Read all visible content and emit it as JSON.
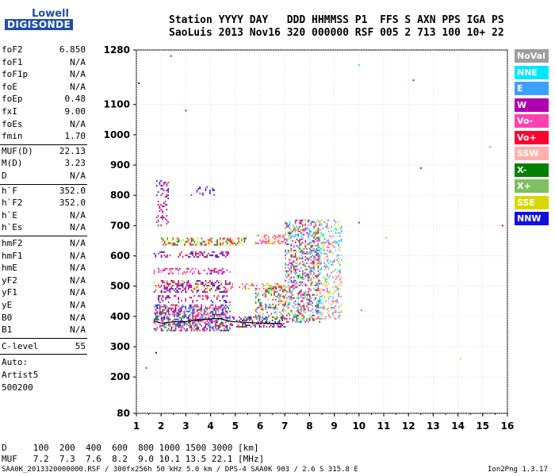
{
  "logo": {
    "line1": "Lowell",
    "line2": "DIGISONDE"
  },
  "header": {
    "line1": "Station YYYY DAY   DDD HHMMSS P1  FFS S AXN PPS IGA PS",
    "line2": "SaoLuis 2013 Nov16 320 000000 RSF 005 2 713 100 10+ 22"
  },
  "params_group1": [
    {
      "k": "foF2",
      "v": "6.850"
    },
    {
      "k": "foF1",
      "v": "N/A"
    },
    {
      "k": "foF1p",
      "v": "N/A"
    },
    {
      "k": "foE",
      "v": "N/A"
    },
    {
      "k": "foEp",
      "v": "0.48"
    },
    {
      "k": "fxI",
      "v": "9.00"
    },
    {
      "k": "foEs",
      "v": "N/A"
    },
    {
      "k": "fmin",
      "v": "1.70"
    }
  ],
  "params_group2": [
    {
      "k": "MUF(D)",
      "v": "22.13"
    },
    {
      "k": "M(D)",
      "v": "3.23"
    },
    {
      "k": "D",
      "v": "N/A"
    }
  ],
  "params_group3": [
    {
      "k": "h`F",
      "v": "352.0"
    },
    {
      "k": "h`F2",
      "v": "352.0"
    },
    {
      "k": "h`E",
      "v": "N/A"
    },
    {
      "k": "h`Es",
      "v": "N/A"
    }
  ],
  "params_group4": [
    {
      "k": "hmF2",
      "v": "N/A"
    },
    {
      "k": "hmF1",
      "v": "N/A"
    },
    {
      "k": "hmE",
      "v": "N/A"
    },
    {
      "k": "yF2",
      "v": "N/A"
    },
    {
      "k": "yF1",
      "v": "N/A"
    },
    {
      "k": "yE",
      "v": "N/A"
    },
    {
      "k": "B0",
      "v": "N/A"
    },
    {
      "k": "B1",
      "v": "N/A"
    }
  ],
  "clevel": {
    "k": "C-level",
    "v": "55"
  },
  "auto": [
    "Auto:",
    "Artist5",
    "500200"
  ],
  "footer": {
    "d_row": "D     100  200  400  600  800 1000 1500 3000 [km]",
    "muf_row": "MUF   7.2  7.3  7.6  8.2  9.0 10.1 13.5 22.1 [MHz]",
    "file_line": "SAA0K_2013320000000.RSF / 300fx256h 50 kHz 5.0 km / DPS-4 SAA0K 903 / 2.6 S 315.8 E",
    "version": "Ion2Png 1.3.17"
  },
  "legend": [
    {
      "label": "NoVal",
      "color": "#9e9e9e"
    },
    {
      "label": "NNE",
      "color": "#00e8ff"
    },
    {
      "label": "E",
      "color": "#3ca0ff"
    },
    {
      "label": "W",
      "color": "#b000b0"
    },
    {
      "label": "Vo-",
      "color": "#ff40b0"
    },
    {
      "label": "Vo+",
      "color": "#ff0033"
    },
    {
      "label": "SSW",
      "color": "#ffb0a8"
    },
    {
      "label": "X-",
      "color": "#008000"
    },
    {
      "label": "X+",
      "color": "#80c060"
    },
    {
      "label": "SSE",
      "color": "#d8d800"
    },
    {
      "label": "NNW",
      "color": "#1010e0"
    }
  ],
  "chart_data": {
    "type": "scatter",
    "xlim": [
      1,
      16
    ],
    "ylim": [
      80,
      1280
    ],
    "x_ticks": [
      "1",
      "2",
      "3",
      "4",
      "5",
      "6",
      "7",
      "8",
      "9",
      "10",
      "11",
      "12",
      "13",
      "14",
      "15",
      "16"
    ],
    "y_ticks": [
      "80",
      "200",
      "300",
      "400",
      "500",
      "600",
      "700",
      "800",
      "900",
      "1000",
      "1100",
      "1280"
    ],
    "grid": true,
    "trace": {
      "x": [
        1.7,
        2.0,
        2.5,
        3.0,
        3.5,
        4.0,
        4.4,
        4.7,
        5.0,
        5.5,
        6.0,
        6.5,
        6.9
      ],
      "y": [
        385,
        378,
        382,
        383,
        388,
        392,
        393,
        385,
        382,
        380,
        378,
        377,
        376
      ]
    },
    "bands": [
      {
        "x": [
          1.7,
          4.8
        ],
        "y": [
          355,
          440
        ],
        "density": 0.55,
        "colors": [
          "#ff0033",
          "#b000b0",
          "#1010e0",
          "#ff40b0",
          "#008000",
          "#3ca0ff"
        ]
      },
      {
        "x": [
          4.8,
          7.0
        ],
        "y": [
          365,
          400
        ],
        "density": 0.35,
        "colors": [
          "#ff0033",
          "#b000b0",
          "#1010e0",
          "#008000"
        ]
      },
      {
        "x": [
          1.7,
          4.8
        ],
        "y": [
          480,
          520
        ],
        "density": 0.45,
        "colors": [
          "#d8d800",
          "#ff0033",
          "#b000b0",
          "#1010e0"
        ]
      },
      {
        "x": [
          4.8,
          7.0
        ],
        "y": [
          490,
          510
        ],
        "density": 0.3,
        "colors": [
          "#d8d800",
          "#ff40b0"
        ]
      },
      {
        "x": [
          1.7,
          4.8
        ],
        "y": [
          540,
          560
        ],
        "density": 0.3,
        "colors": [
          "#ff0033",
          "#b000b0",
          "#ff40b0"
        ]
      },
      {
        "x": [
          1.7,
          4.8
        ],
        "y": [
          595,
          615
        ],
        "density": 0.3,
        "colors": [
          "#ff0033",
          "#b000b0",
          "#1010e0"
        ]
      },
      {
        "x": [
          2.0,
          5.5
        ],
        "y": [
          635,
          660
        ],
        "density": 0.45,
        "colors": [
          "#d8d800",
          "#008000",
          "#ff0033"
        ]
      },
      {
        "x": [
          5.8,
          7.0
        ],
        "y": [
          640,
          670
        ],
        "density": 0.4,
        "colors": [
          "#d8d800",
          "#ff40b0"
        ]
      },
      {
        "x": [
          5.8,
          7.0
        ],
        "y": [
          390,
          500
        ],
        "density": 0.3,
        "colors": [
          "#3ca0ff",
          "#d8d800",
          "#ff0033",
          "#008000"
        ]
      },
      {
        "x": [
          7.0,
          8.4
        ],
        "y": [
          380,
          720
        ],
        "density": 0.4,
        "colors": [
          "#3ca0ff",
          "#00e8ff",
          "#ff0033",
          "#b000b0",
          "#008000",
          "#d8d800",
          "#ff40b0"
        ]
      },
      {
        "x": [
          8.4,
          9.3
        ],
        "y": [
          390,
          720
        ],
        "density": 0.3,
        "colors": [
          "#3ca0ff",
          "#00e8ff",
          "#d8d800",
          "#ff40b0",
          "#ffb0a8"
        ]
      },
      {
        "x": [
          1.8,
          2.3
        ],
        "y": [
          700,
          850
        ],
        "density": 0.25,
        "colors": [
          "#b000b0",
          "#1010e0",
          "#ff0033"
        ]
      },
      {
        "x": [
          3.2,
          4.2
        ],
        "y": [
          800,
          830
        ],
        "density": 0.15,
        "colors": [
          "#b000b0",
          "#1010e0"
        ]
      },
      {
        "x": [
          1.7,
          4.8
        ],
        "y": [
          445,
          470
        ],
        "density": 0.2,
        "colors": [
          "#b000b0",
          "#ff0033",
          "#1010e0"
        ]
      }
    ],
    "isolated_points": [
      {
        "x": 1.1,
        "y": 1170,
        "color": "#1010e0"
      },
      {
        "x": 1.4,
        "y": 230,
        "color": "#ff0033"
      },
      {
        "x": 1.8,
        "y": 280,
        "color": "#1010e0"
      },
      {
        "x": 2.4,
        "y": 1260,
        "color": "#b000b0"
      },
      {
        "x": 3.0,
        "y": 1080,
        "color": "#b000b0"
      },
      {
        "x": 10.0,
        "y": 1230,
        "color": "#00e8ff"
      },
      {
        "x": 12.2,
        "y": 1180,
        "color": "#008000"
      },
      {
        "x": 12.5,
        "y": 890,
        "color": "#008000"
      },
      {
        "x": 15.3,
        "y": 960,
        "color": "#00e8ff"
      },
      {
        "x": 15.8,
        "y": 700,
        "color": "#b000b0"
      },
      {
        "x": 14.1,
        "y": 260,
        "color": "#d8d800"
      },
      {
        "x": 10.1,
        "y": 420,
        "color": "#3ca0ff"
      },
      {
        "x": 11.1,
        "y": 660,
        "color": "#d8d800"
      },
      {
        "x": 10.0,
        "y": 710,
        "color": "#008000"
      }
    ]
  }
}
